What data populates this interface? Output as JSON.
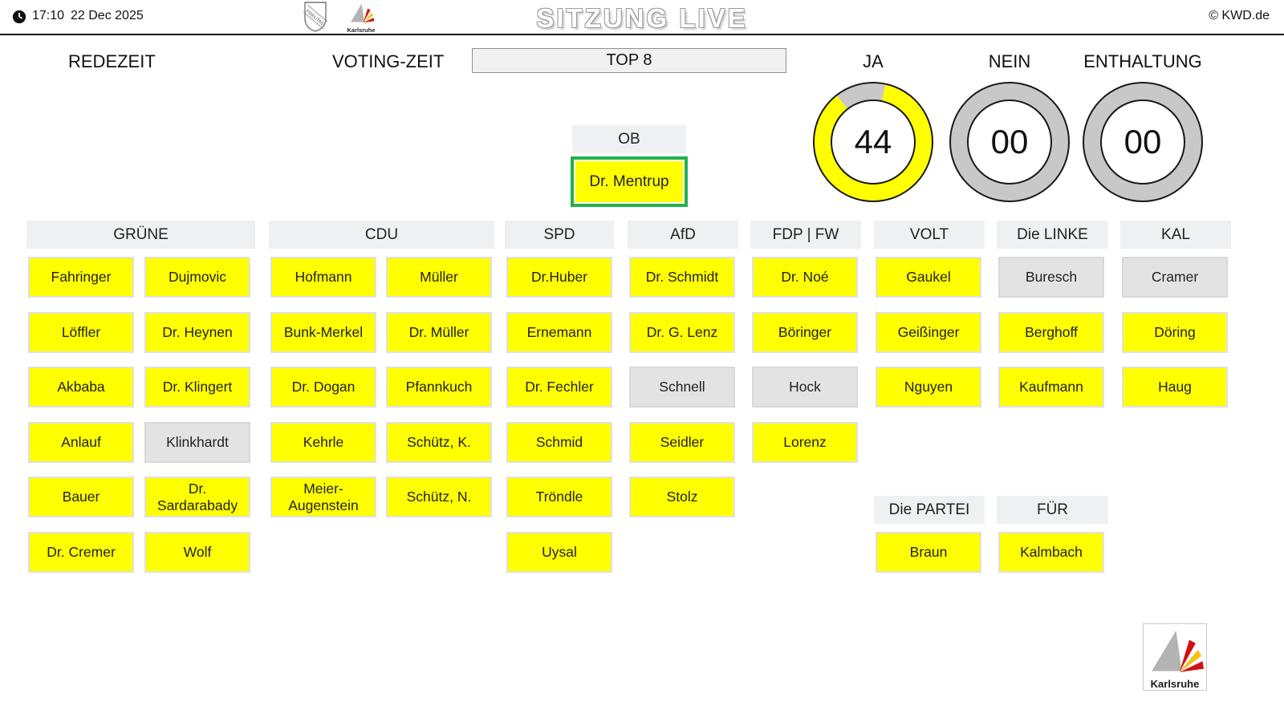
{
  "topbar": {
    "time": "17:10",
    "date": "22 Dec 2025",
    "title": "SITZUNG LIVE",
    "copyright": "© KWD.de",
    "shield_label": "FIDELITAS"
  },
  "logo": {
    "label": "Karlsruhe"
  },
  "controls": {
    "redezeit": "REDEZEIT",
    "voting_zeit": "VOTING-ZEIT",
    "top": "TOP 8"
  },
  "counters": [
    {
      "id": "ja",
      "label": "JA",
      "value": "44",
      "ring": "partial-yellow"
    },
    {
      "id": "nein",
      "label": "NEIN",
      "value": "00",
      "ring": "gray"
    },
    {
      "id": "enthaltung",
      "label": "ENTHALTUNG",
      "value": "00",
      "ring": "gray"
    }
  ],
  "mayor": {
    "header": "OB",
    "name": "Dr. Mentrup",
    "status": "ja",
    "selected": true
  },
  "parties": [
    {
      "name": "GRÜNE",
      "columns": [
        [
          {
            "name": "Fahringer",
            "status": "ja"
          },
          {
            "name": "Löffler",
            "status": "ja"
          },
          {
            "name": "Akbaba",
            "status": "ja"
          },
          {
            "name": "Anlauf",
            "status": "ja"
          },
          {
            "name": "Bauer",
            "status": "ja"
          },
          {
            "name": "Dr. Cremer",
            "status": "ja"
          }
        ],
        [
          {
            "name": "Dujmovic",
            "status": "ja"
          },
          {
            "name": "Dr. Heynen",
            "status": "ja"
          },
          {
            "name": "Dr. Klingert",
            "status": "ja"
          },
          {
            "name": "Klinkhardt",
            "status": "inactive"
          },
          {
            "name": "Dr. Sardarabady",
            "status": "ja"
          },
          {
            "name": "Wolf",
            "status": "ja"
          }
        ]
      ]
    },
    {
      "name": "CDU",
      "columns": [
        [
          {
            "name": "Hofmann",
            "status": "ja"
          },
          {
            "name": "Bunk-Merkel",
            "status": "ja"
          },
          {
            "name": "Dr. Dogan",
            "status": "ja"
          },
          {
            "name": "Kehrle",
            "status": "ja"
          },
          {
            "name": "Meier-Augenstein",
            "status": "ja"
          }
        ],
        [
          {
            "name": "Müller",
            "status": "ja"
          },
          {
            "name": "Dr. Müller",
            "status": "ja"
          },
          {
            "name": "Pfannkuch",
            "status": "ja"
          },
          {
            "name": "Schütz, K.",
            "status": "ja"
          },
          {
            "name": "Schütz, N.",
            "status": "ja"
          }
        ]
      ]
    },
    {
      "name": "SPD",
      "columns": [
        [
          {
            "name": "Dr.Huber",
            "status": "ja"
          },
          {
            "name": "Ernemann",
            "status": "ja"
          },
          {
            "name": "Dr. Fechler",
            "status": "ja"
          },
          {
            "name": "Schmid",
            "status": "ja"
          },
          {
            "name": "Tröndle",
            "status": "ja"
          },
          {
            "name": "Uysal",
            "status": "ja"
          }
        ]
      ]
    },
    {
      "name": "AfD",
      "columns": [
        [
          {
            "name": "Dr. Schmidt",
            "status": "ja"
          },
          {
            "name": "Dr. G. Lenz",
            "status": "ja"
          },
          {
            "name": "Schnell",
            "status": "inactive"
          },
          {
            "name": "Seidler",
            "status": "ja"
          },
          {
            "name": "Stolz",
            "status": "ja"
          }
        ]
      ]
    },
    {
      "name": "FDP | FW",
      "columns": [
        [
          {
            "name": "Dr. Noé",
            "status": "ja"
          },
          {
            "name": "Böringer",
            "status": "ja"
          },
          {
            "name": "Hock",
            "status": "inactive"
          },
          {
            "name": "Lorenz",
            "status": "ja"
          }
        ]
      ]
    },
    {
      "name": "VOLT",
      "columns": [
        [
          {
            "name": "Gaukel",
            "status": "ja"
          },
          {
            "name": "Geißinger",
            "status": "ja"
          },
          {
            "name": "Nguyen",
            "status": "ja"
          }
        ]
      ]
    },
    {
      "name": "Die LINKE",
      "columns": [
        [
          {
            "name": "Buresch",
            "status": "inactive"
          },
          {
            "name": "Berghoff",
            "status": "ja"
          },
          {
            "name": "Kaufmann",
            "status": "ja"
          }
        ]
      ]
    },
    {
      "name": "KAL",
      "columns": [
        [
          {
            "name": "Cramer",
            "status": "inactive"
          },
          {
            "name": "Döring",
            "status": "ja"
          },
          {
            "name": "Haug",
            "status": "ja"
          }
        ]
      ]
    },
    {
      "name": "Die PARTEI",
      "columns": [
        [
          {
            "name": "Braun",
            "status": "ja"
          }
        ]
      ]
    },
    {
      "name": "FÜR",
      "columns": [
        [
          {
            "name": "Kalmbach",
            "status": "ja"
          }
        ]
      ]
    }
  ],
  "colors": {
    "ja_yellow": "#ffff00",
    "inactive_gray": "#e3e3e3",
    "selected_green": "#22b14c",
    "ring_gray": "#c8c8c8",
    "brand_red": "#d40f14",
    "brand_yellow": "#f6c211"
  }
}
